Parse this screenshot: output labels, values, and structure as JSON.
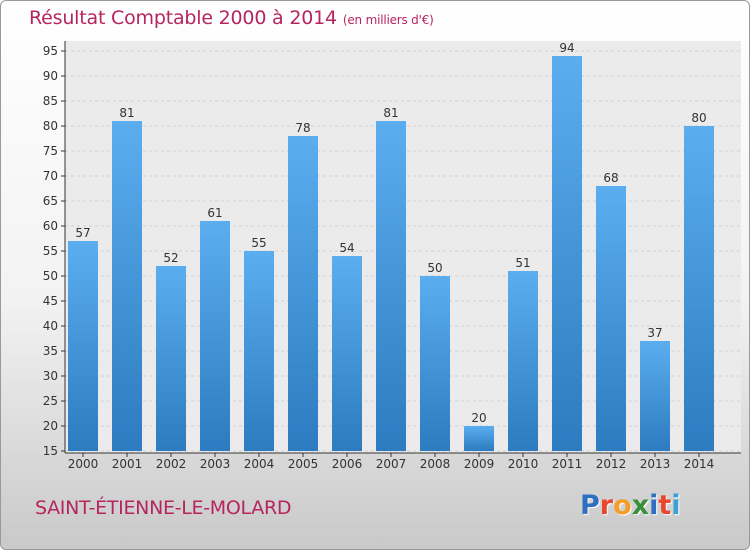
{
  "header": {
    "title": "Résultat Comptable 2000 à 2014",
    "subtitle": "(en milliers d'€)"
  },
  "footer": {
    "town": "SAINT-ÉTIENNE-LE-MOLARD",
    "logo_letters": [
      {
        "ch": "P",
        "color": "#2f6fc0"
      },
      {
        "ch": "r",
        "color": "#e8462e"
      },
      {
        "ch": "o",
        "color": "#f0a02a"
      },
      {
        "ch": "x",
        "color": "#3a8f3a"
      },
      {
        "ch": "i",
        "color": "#2f6fc0"
      },
      {
        "ch": "t",
        "color": "#e8462e"
      },
      {
        "ch": "i",
        "color": "#3aa0d8"
      }
    ]
  },
  "colors": {
    "title": "#b5255e",
    "bar_light": "#5aaef0",
    "bar_dark": "#2d7bc0",
    "grid": "#d0d0d0",
    "axis": "#333333"
  },
  "chart_data": {
    "type": "bar",
    "categories": [
      "2000",
      "2001",
      "2002",
      "2003",
      "2004",
      "2005",
      "2006",
      "2007",
      "2008",
      "2009",
      "2010",
      "2011",
      "2012",
      "2013",
      "2014"
    ],
    "values": [
      57,
      81,
      52,
      61,
      55,
      78,
      54,
      81,
      50,
      20,
      51,
      94,
      68,
      37,
      80
    ],
    "ylim": [
      15,
      95
    ],
    "yticks": [
      15,
      20,
      25,
      30,
      35,
      40,
      45,
      50,
      55,
      60,
      65,
      70,
      75,
      80,
      85,
      90,
      95
    ],
    "grid": true
  }
}
